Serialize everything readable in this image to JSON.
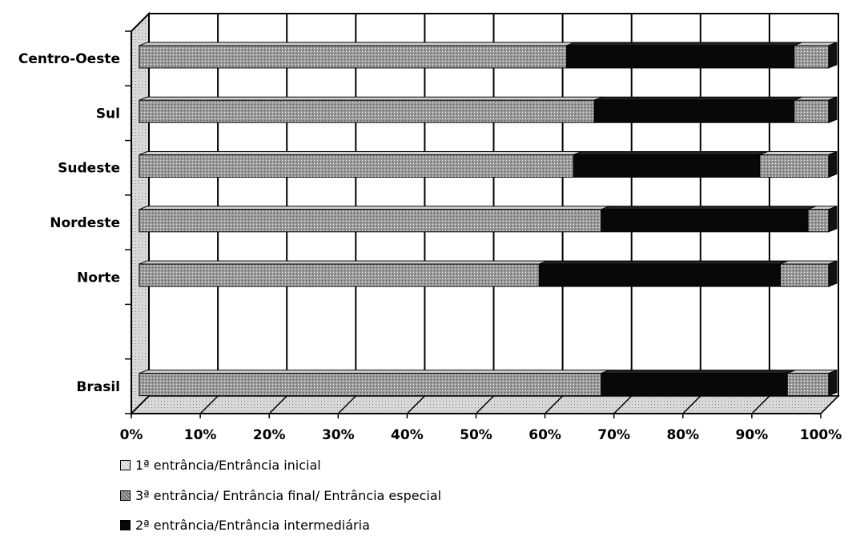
{
  "chart_data": {
    "type": "bar",
    "orientation": "horizontal",
    "stacked": true,
    "normalized": true,
    "three_d": true,
    "categories": [
      "Brasil",
      "",
      "Norte",
      "Nordeste",
      "Sudeste",
      "Sul",
      "Centro-Oeste"
    ],
    "series": [
      {
        "name": "1ª entrância/Entrância inicial",
        "values": [
          0,
          0,
          0,
          0,
          0,
          0,
          0
        ],
        "color": "#e8e8e8"
      },
      {
        "name": "3ª entrância/ Entrância final/ Entrância especial",
        "values": [
          67,
          0,
          58,
          67,
          63,
          66,
          62
        ],
        "color": "#9a9a9a"
      },
      {
        "name": "2ª entrância/Entrância intermediária",
        "values": [
          27,
          0,
          35,
          30,
          27,
          29,
          33
        ],
        "color": "#080808"
      },
      {
        "name": "",
        "values": [
          6,
          0,
          7,
          3,
          10,
          5,
          5
        ],
        "color": "#9a9a9a"
      }
    ],
    "x_ticks": [
      "0%",
      "10%",
      "20%",
      "30%",
      "40%",
      "50%",
      "60%",
      "70%",
      "80%",
      "90%",
      "100%"
    ],
    "xlim": [
      0,
      100
    ],
    "grid": true,
    "legend_position": "bottom-left"
  },
  "legend": [
    {
      "label": "1ª entrância/Entrância inicial",
      "color": "#e8e8e8"
    },
    {
      "label": "3ª entrância/ Entrância final/ Entrância especial",
      "color": "#9a9a9a"
    },
    {
      "label": "2ª entrância/Entrância intermediária",
      "color": "#080808"
    }
  ]
}
